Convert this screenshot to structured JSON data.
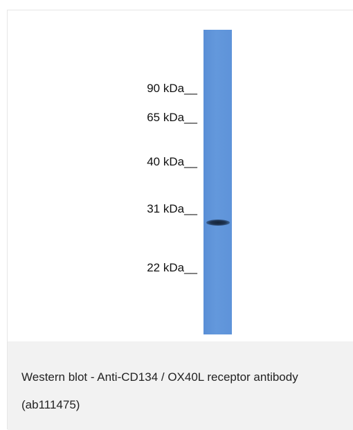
{
  "figure": {
    "markers": [
      {
        "label": "90 kDa__"
      },
      {
        "label": "65 kDa__"
      },
      {
        "label": "40 kDa__"
      },
      {
        "label": "31 kDa__"
      },
      {
        "label": "22 kDa__"
      }
    ],
    "lane_color": "#5e92d8",
    "band_color": "#1e3350"
  },
  "caption": {
    "text": "Western blot - Anti-CD134 / OX40L receptor antibody (ab111475)"
  }
}
